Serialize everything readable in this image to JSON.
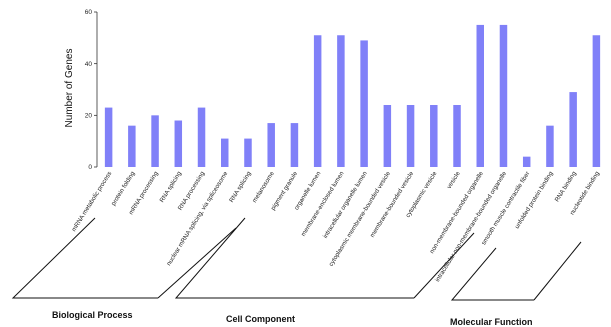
{
  "chart_data": {
    "type": "bar",
    "ylabel": "Number of Genes",
    "ylim": [
      0,
      60
    ],
    "yticks": [
      0,
      20,
      40,
      60
    ],
    "bar_color": "#8080f8",
    "categories": [
      "mRNA metabolic process",
      "protein folding",
      "mRNA processing",
      "RNA splicing",
      "RNA processing",
      "nuclear mRNA splicing, via spliceosome",
      "RNA splicing",
      "melanosome",
      "pigment granule",
      "organelle lumen",
      "membrane-enclosed lumen",
      "intracellular organelle lumen",
      "cytoplasmic membrane-bounded vesicle",
      "membrane-bounded vesicle",
      "cytoplasmic vesicle",
      "vesicle",
      "non-membrane-bounded organelle",
      "intracellular non-membrane-bounded organelle",
      "smooth muscle contractile fiber",
      "unfolded protein binding",
      "RNA binding",
      "nucleotide binding"
    ],
    "values": [
      23,
      16,
      20,
      18,
      23,
      11,
      11,
      17,
      17,
      51,
      51,
      49,
      24,
      24,
      24,
      24,
      55,
      55,
      4,
      16,
      29,
      51
    ],
    "groups": [
      {
        "label": "Biological Process"
      },
      {
        "label": "Cell  Component"
      },
      {
        "label": "Molecular Function"
      }
    ]
  }
}
